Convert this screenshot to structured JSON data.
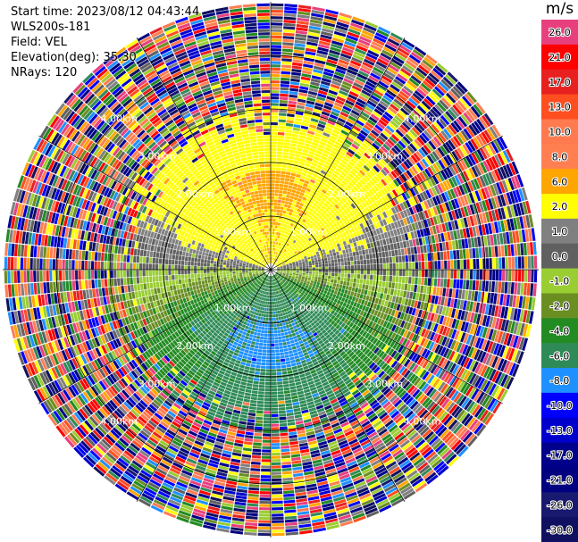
{
  "header": {
    "start_time": "Start time: 2023/08/12 04:43:44",
    "instrument": "WLS200s-181",
    "field": "Field: VEL",
    "elevation": "Elevation(deg): 35.30",
    "nrays": "NRays: 120"
  },
  "colorbar": {
    "unit": "m/s",
    "levels": [
      {
        "label": "26.0",
        "color": "#e8407f"
      },
      {
        "label": "21.0",
        "color": "#ff0000"
      },
      {
        "label": "17.0",
        "color": "#e82020"
      },
      {
        "label": "13.0",
        "color": "#ff4e1f"
      },
      {
        "label": "10.0",
        "color": "#ff7a4f"
      },
      {
        "label": "8.0",
        "color": "#ff7f50"
      },
      {
        "label": "6.0",
        "color": "#ffa500"
      },
      {
        "label": "2.0",
        "color": "#ffff00"
      },
      {
        "label": "1.0",
        "color": "#808080"
      },
      {
        "label": "0.0",
        "color": "#606060"
      },
      {
        "label": "-1.0",
        "color": "#9acd32"
      },
      {
        "label": "-2.0",
        "color": "#6b8e23"
      },
      {
        "label": "-4.0",
        "color": "#228b22"
      },
      {
        "label": "-6.0",
        "color": "#2e8b57"
      },
      {
        "label": "-8.0",
        "color": "#1e90ff"
      },
      {
        "label": "-10.0",
        "color": "#0000ff"
      },
      {
        "label": "-13.0",
        "color": "#0000cd"
      },
      {
        "label": "-17.0",
        "color": "#00008b"
      },
      {
        "label": "-21.0",
        "color": "#000080"
      },
      {
        "label": "-26.0",
        "color": "#191970"
      },
      {
        "label": "-30.0",
        "color": "#101060"
      }
    ]
  },
  "chart_data": {
    "type": "heatmap",
    "projection": "polar-ppi",
    "field": "VEL",
    "nrays": 120,
    "range_rings_km": [
      1,
      2,
      3,
      4
    ],
    "range_ring_labels": [
      "1.00km",
      "2.00km",
      "3.00km",
      "4.00km"
    ],
    "max_range_km": 5,
    "spokes_deg": [
      0,
      30,
      60,
      90,
      120,
      150,
      180,
      210,
      240,
      270,
      300,
      330
    ],
    "velocity_pattern": {
      "toward_sector_center_deg": 0,
      "toward_value": 6.0,
      "away_sector_center_deg": 180,
      "away_value": -6.0,
      "clean_range_km": 2.4,
      "noise_beyond_km": 3.0
    }
  }
}
